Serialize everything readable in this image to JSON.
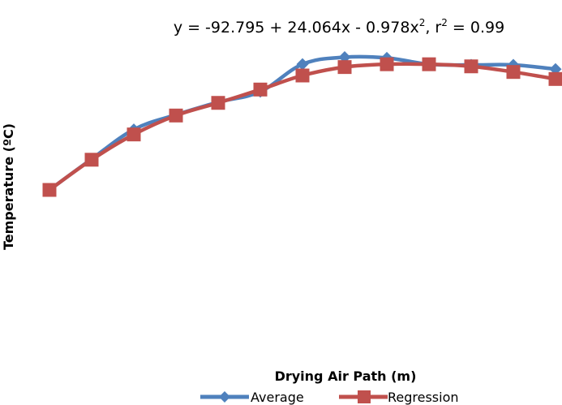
{
  "chart_data": {
    "type": "line",
    "title": "",
    "xlabel": "Drying Air Path (m)",
    "ylabel": "Temperature (ºC)",
    "x": [
      1,
      2,
      3,
      4,
      5,
      6,
      7,
      8,
      9,
      10,
      11,
      12,
      13
    ],
    "xlim": [
      1,
      13
    ],
    "ylim": [
      20,
      60
    ],
    "series": [
      {
        "name": "Average",
        "color": "#4F81BD",
        "marker": "diamond",
        "values": [
          20.0,
          24.4,
          28.6,
          30.7,
          32.5,
          34.0,
          37.9,
          38.9,
          38.8,
          37.9,
          37.8,
          37.8,
          37.2
        ]
      },
      {
        "name": "Regression",
        "color": "#C0504D",
        "marker": "square",
        "values": [
          20.0,
          24.3,
          27.9,
          30.6,
          32.4,
          34.3,
          36.3,
          37.5,
          37.9,
          37.9,
          37.6,
          36.8,
          35.8
        ]
      }
    ],
    "annotation": {
      "prefix": "y = -92.795 + 24.064x - 0.978x",
      "sup1": "2",
      "middle": ",  r",
      "sup2": "2",
      "suffix": " = 0.99"
    },
    "legend_position": "bottom",
    "grid": false
  }
}
